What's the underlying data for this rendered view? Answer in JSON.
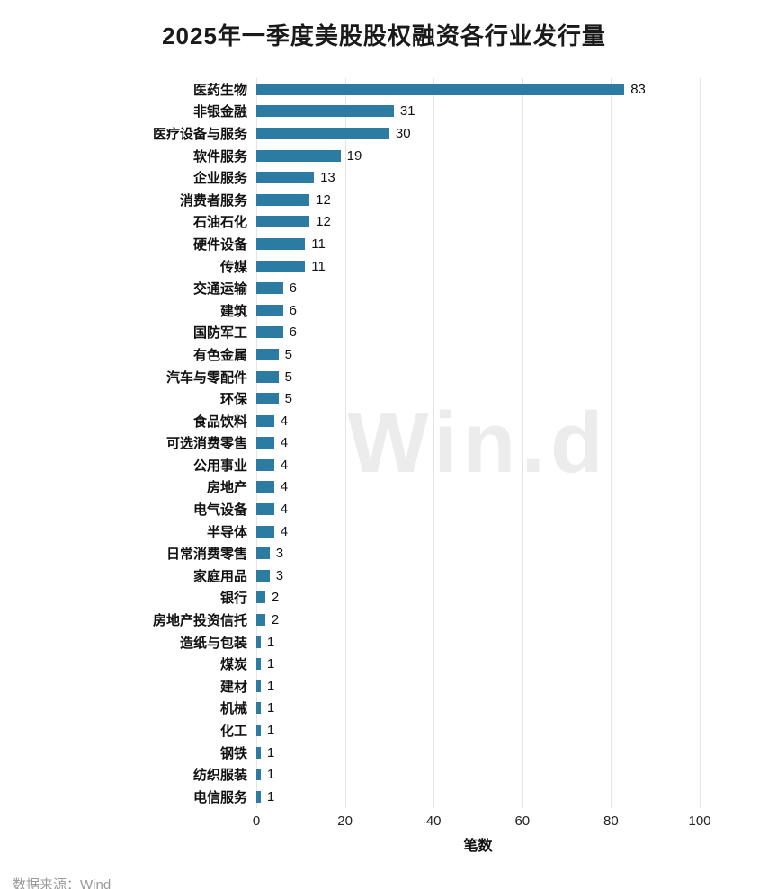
{
  "title": "2025年一季度美股股权融资各行业发行量",
  "source": "数据来源：Wind",
  "watermark": "Win.d",
  "chart_data": {
    "type": "bar",
    "orientation": "horizontal",
    "title": "2025年一季度美股股权融资各行业发行量",
    "xlabel": "笔数",
    "ylabel": "",
    "xlim": [
      0,
      100
    ],
    "xticks": [
      0,
      20,
      40,
      60,
      80,
      100
    ],
    "grid": true,
    "bar_color": "#2B7BA3",
    "grid_color": "#e4e4e4",
    "categories": [
      "医药生物",
      "非银金融",
      "医疗设备与服务",
      "软件服务",
      "企业服务",
      "消费者服务",
      "石油石化",
      "硬件设备",
      "传媒",
      "交通运输",
      "建筑",
      "国防军工",
      "有色金属",
      "汽车与零配件",
      "环保",
      "食品饮料",
      "可选消费零售",
      "公用事业",
      "房地产",
      "电气设备",
      "半导体",
      "日常消费零售",
      "家庭用品",
      "银行",
      "房地产投资信托",
      "造纸与包装",
      "煤炭",
      "建材",
      "机械",
      "化工",
      "钢铁",
      "纺织服装",
      "电信服务"
    ],
    "values": [
      83,
      31,
      30,
      19,
      13,
      12,
      12,
      11,
      11,
      6,
      6,
      6,
      5,
      5,
      5,
      4,
      4,
      4,
      4,
      4,
      4,
      3,
      3,
      2,
      2,
      1,
      1,
      1,
      1,
      1,
      1,
      1,
      1
    ]
  }
}
